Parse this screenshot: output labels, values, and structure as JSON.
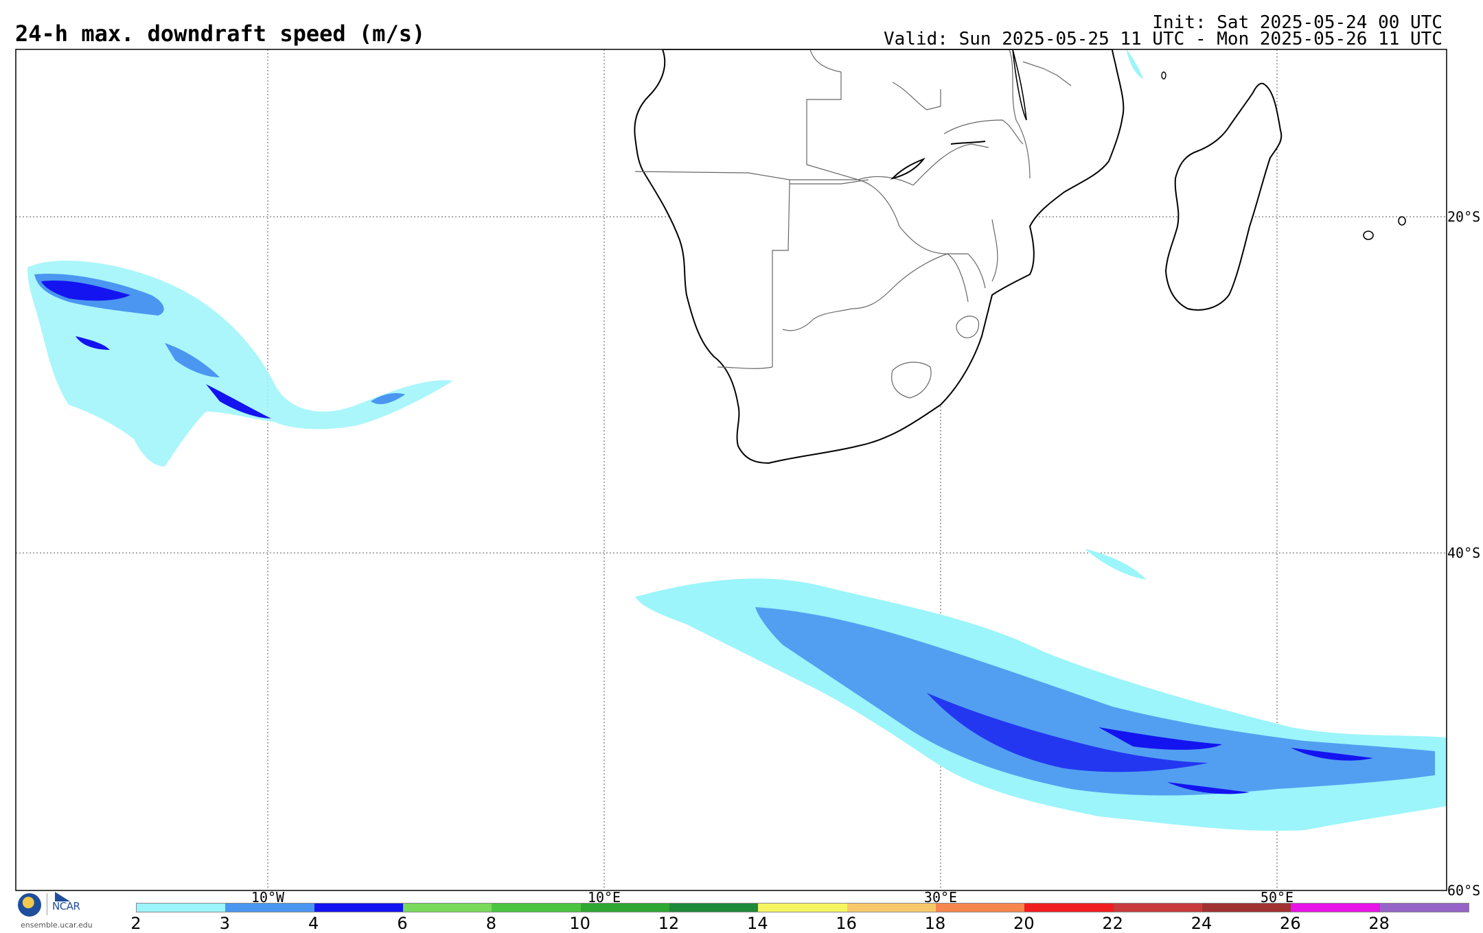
{
  "header": {
    "title": "24-h max. downdraft speed (m/s)",
    "init": "Init: Sat 2025-05-24 00 UTC",
    "valid": "Valid: Sun 2025-05-25 11 UTC - Mon 2025-05-26 11 UTC"
  },
  "map": {
    "region": "Southern Africa and adjacent oceans",
    "lat_labels": [
      "20°S",
      "40°S",
      "60°S"
    ],
    "lon_labels": [
      "10°W",
      "10°E",
      "30°E",
      "50°E"
    ],
    "gridlines": true,
    "land_color": "#ffffff",
    "coast_color": "#000000",
    "border_color": "#666666"
  },
  "colorbar": {
    "tick_labels": [
      "2",
      "3",
      "4",
      "6",
      "8",
      "10",
      "12",
      "14",
      "16",
      "18",
      "20",
      "22",
      "24",
      "26",
      "28"
    ],
    "colors": [
      "#9bf5fa",
      "#4a96f0",
      "#1414f0",
      "#78d95a",
      "#4bc440",
      "#2ea733",
      "#1e8a3a",
      "#f5f560",
      "#f7c86a",
      "#f5874e",
      "#f01e1e",
      "#c83c3c",
      "#a03232",
      "#e614e6",
      "#9664c8"
    ]
  },
  "footer": {
    "site": "ensemble.ucar.edu",
    "logo_text": "NCAR"
  }
}
